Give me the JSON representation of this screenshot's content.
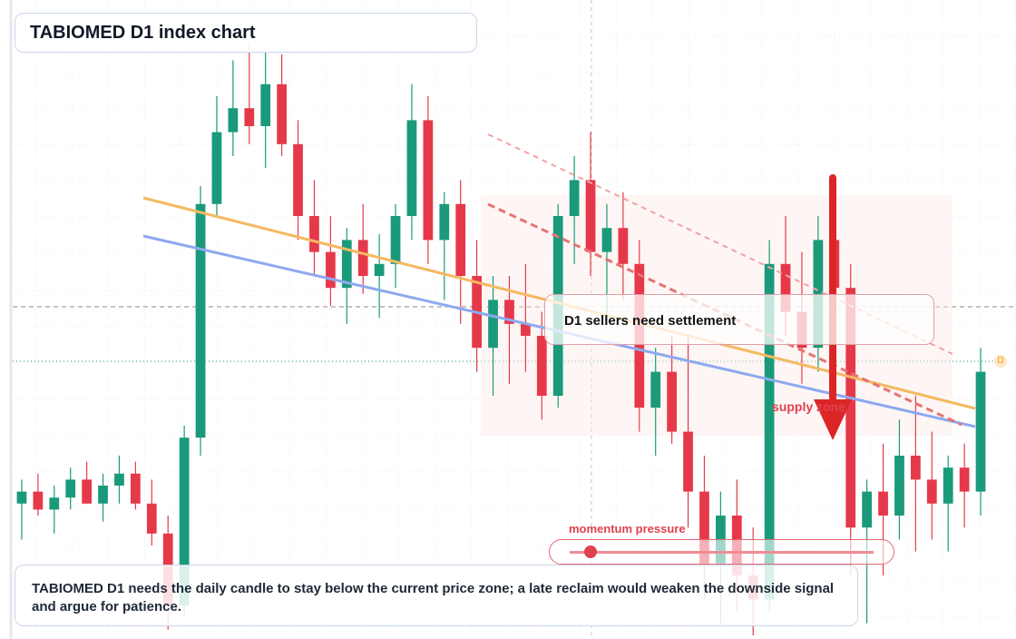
{
  "chart_data": {
    "type": "candlestick",
    "title": "TABIOMED D1 index chart",
    "ylim": [
      0,
      100
    ],
    "up_color": "#1a9a7a",
    "down_color": "#e5394a",
    "open": [
      22,
      24,
      21,
      23,
      26,
      22,
      25,
      27,
      22,
      17,
      5,
      33,
      72,
      84,
      88,
      85,
      92,
      82,
      70,
      64,
      58,
      66,
      60,
      62,
      70,
      86,
      66,
      72,
      60,
      48,
      56,
      52,
      50,
      40,
      70,
      76,
      64,
      68,
      62,
      38,
      44,
      34,
      24,
      12,
      20,
      10,
      6,
      62,
      54,
      48,
      66,
      58,
      18,
      24,
      20,
      30,
      26,
      22,
      28,
      24
    ],
    "high": [
      26,
      27,
      25,
      28,
      29,
      27,
      30,
      29,
      26,
      20,
      35,
      75,
      90,
      96,
      99,
      98,
      97,
      86,
      76,
      70,
      68,
      72,
      67,
      72,
      92,
      90,
      74,
      76,
      66,
      60,
      60,
      62,
      54,
      72,
      80,
      84,
      72,
      74,
      66,
      48,
      50,
      50,
      30,
      24,
      26,
      18,
      66,
      70,
      64,
      70,
      72,
      62,
      26,
      32,
      36,
      40,
      34,
      30,
      32,
      48
    ],
    "low": [
      16,
      20,
      17,
      21,
      22,
      19,
      22,
      21,
      15,
      1,
      3,
      30,
      70,
      80,
      82,
      78,
      80,
      66,
      60,
      55,
      52,
      57,
      53,
      58,
      66,
      62,
      56,
      52,
      44,
      40,
      42,
      44,
      36,
      38,
      62,
      60,
      52,
      56,
      34,
      30,
      32,
      18,
      6,
      2,
      4,
      0,
      4,
      50,
      42,
      44,
      50,
      10,
      2,
      10,
      16,
      14,
      16,
      14,
      18,
      20
    ],
    "close": [
      24,
      21,
      23,
      26,
      22,
      25,
      27,
      22,
      17,
      5,
      33,
      72,
      84,
      88,
      85,
      92,
      82,
      70,
      64,
      58,
      66,
      60,
      62,
      70,
      86,
      66,
      72,
      60,
      48,
      56,
      52,
      50,
      40,
      70,
      76,
      64,
      68,
      62,
      38,
      44,
      34,
      24,
      12,
      20,
      10,
      6,
      62,
      54,
      48,
      66,
      58,
      18,
      24,
      20,
      30,
      26,
      22,
      28,
      24,
      44
    ]
  },
  "annotations": {
    "callout": "D1 sellers need settlement",
    "zone": "supply zone",
    "momentum": "momentum pressure",
    "note": "TABIOMED D1 needs the daily candle to stay below the current price zone; a late reclaim would weaken the downside signal and argue for patience.",
    "marker": "D"
  }
}
